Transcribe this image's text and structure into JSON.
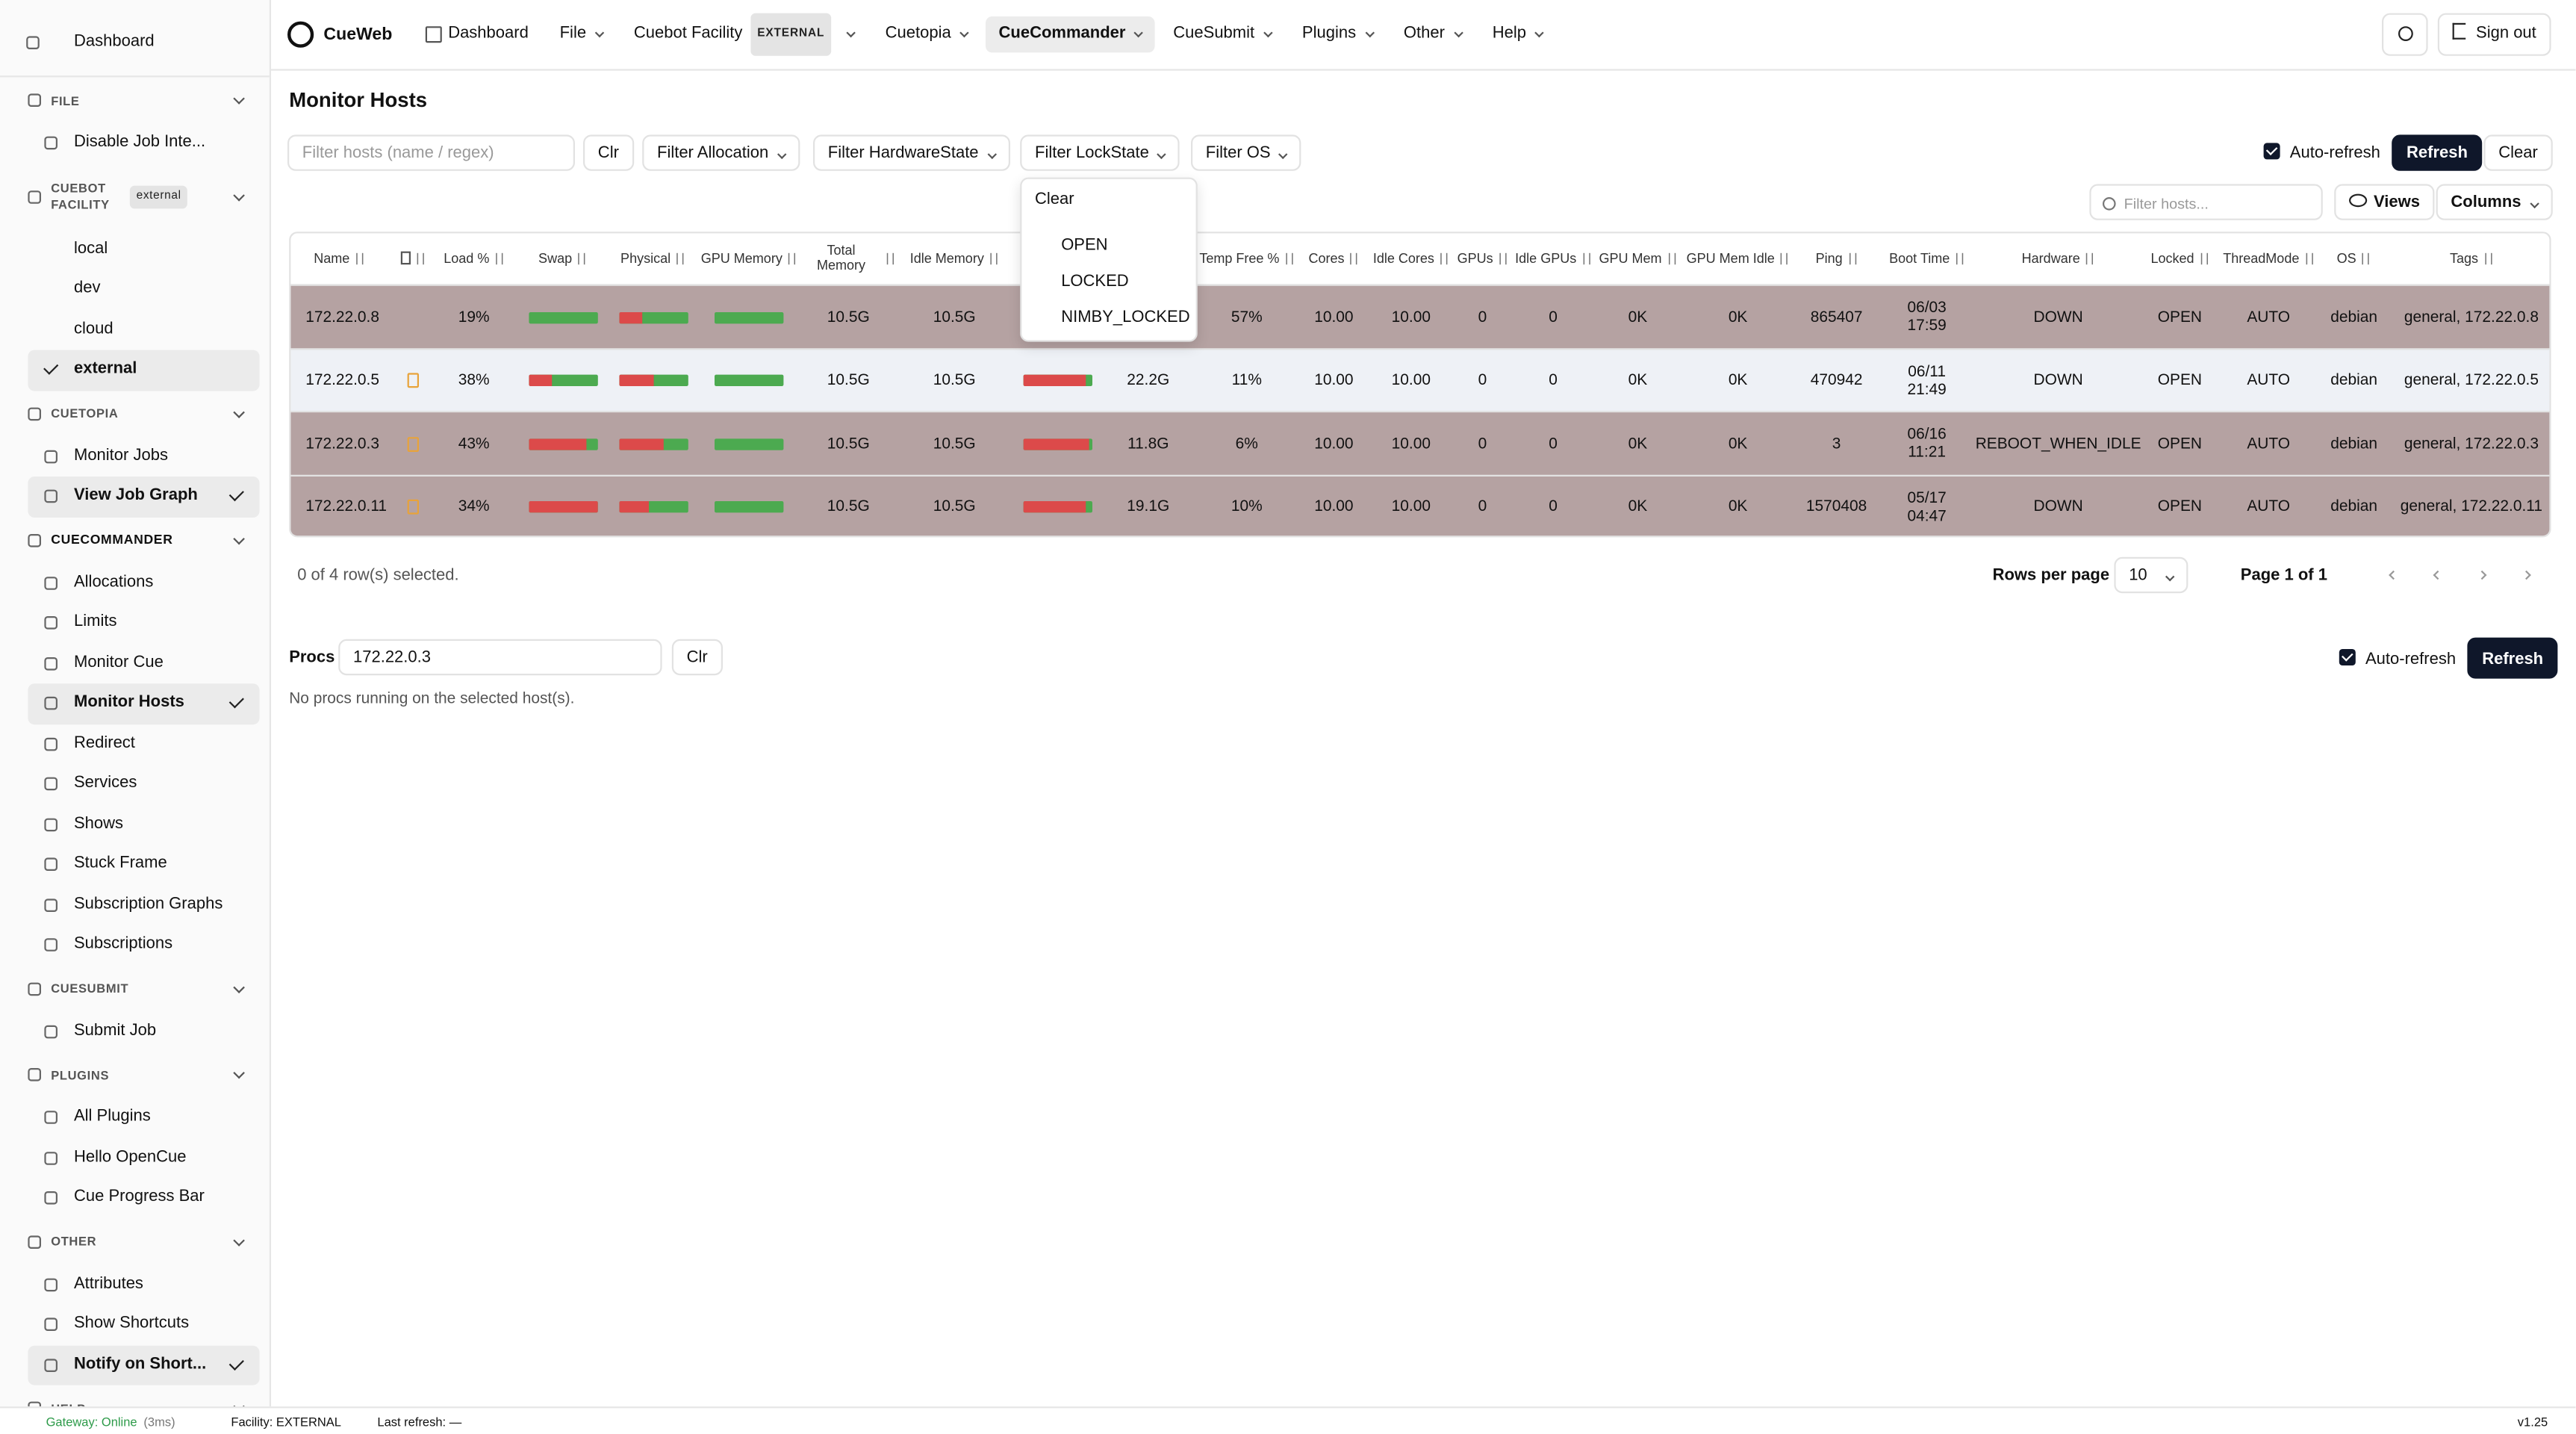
{
  "nav": {
    "brand": "CueWeb",
    "signout": "Sign out",
    "items": [
      {
        "label": "Dashboard",
        "menu": false
      },
      {
        "label": "File",
        "menu": true
      },
      {
        "label": "Cuebot Facility",
        "badge": "EXTERNAL",
        "menu": true
      },
      {
        "label": "Cuetopia",
        "menu": true
      },
      {
        "label": "CueCommander",
        "menu": true,
        "active": true
      },
      {
        "label": "CueSubmit",
        "menu": true
      },
      {
        "label": "Plugins",
        "menu": true
      },
      {
        "label": "Other",
        "menu": true
      },
      {
        "label": "Help",
        "menu": true
      }
    ]
  },
  "sidebar": {
    "dashboard": "Dashboard",
    "sections": [
      {
        "title": "FILE",
        "items": [
          {
            "label": "Disable Job Inte..."
          }
        ]
      },
      {
        "title": "CUEBOT FACILITY",
        "badge": "external",
        "plain": true,
        "items": [
          {
            "label": "local"
          },
          {
            "label": "dev"
          },
          {
            "label": "cloud"
          },
          {
            "label": "external",
            "selected": true
          }
        ]
      },
      {
        "title": "CUETOPIA",
        "items": [
          {
            "label": "Monitor Jobs"
          },
          {
            "label": "View Job Graph",
            "selected": true
          }
        ]
      },
      {
        "title": "CUECOMMANDER",
        "strong": true,
        "items": [
          {
            "label": "Allocations"
          },
          {
            "label": "Limits"
          },
          {
            "label": "Monitor Cue"
          },
          {
            "label": "Monitor Hosts",
            "selected": true
          },
          {
            "label": "Redirect"
          },
          {
            "label": "Services"
          },
          {
            "label": "Shows"
          },
          {
            "label": "Stuck Frame"
          },
          {
            "label": "Subscription Graphs"
          },
          {
            "label": "Subscriptions"
          }
        ]
      },
      {
        "title": "CUESUBMIT",
        "items": [
          {
            "label": "Submit Job"
          }
        ]
      },
      {
        "title": "PLUGINS",
        "items": [
          {
            "label": "All Plugins"
          },
          {
            "label": "Hello OpenCue"
          },
          {
            "label": "Cue Progress Bar"
          }
        ]
      },
      {
        "title": "OTHER",
        "items": [
          {
            "label": "Attributes"
          },
          {
            "label": "Show Shortcuts"
          },
          {
            "label": "Notify on Short...",
            "selected": true
          }
        ]
      },
      {
        "title": "HELP",
        "items": []
      }
    ]
  },
  "main": {
    "title": "Monitor Hosts",
    "filter_placeholder": "Filter hosts (name / regex)",
    "clr": "Clr",
    "filters": [
      "Filter Allocation",
      "Filter HardwareState",
      "Filter LockState",
      "Filter OS"
    ],
    "auto_refresh": "Auto-refresh",
    "refresh": "Refresh",
    "clear": "Clear",
    "dropdown": {
      "clear": "Clear",
      "options": [
        "OPEN",
        "LOCKED",
        "NIMBY_LOCKED"
      ]
    },
    "search_placeholder": "Filter hosts...",
    "views": "Views",
    "columns": "Columns"
  },
  "table": {
    "headers": [
      "Name",
      null,
      "Load %",
      "Swap",
      "Physical",
      "GPU Memory",
      "Total Memory",
      "Idle Memory",
      null,
      null,
      "Temp Free %",
      "Cores",
      "Idle Cores",
      "GPUs",
      "Idle GPUs",
      "GPU Mem",
      "GPU Mem Idle",
      "Ping",
      "Boot Time",
      "Hardware",
      "Locked",
      "ThreadMode",
      "OS",
      "Tags"
    ],
    "kinds": [
      "text",
      "note",
      "text",
      "bar",
      "bar",
      "bar",
      "text",
      "text",
      "bar",
      "text",
      "text",
      "text",
      "text",
      "text",
      "text",
      "text",
      "text",
      "text",
      "text",
      "text",
      "text",
      "text",
      "text",
      "text"
    ],
    "rows": [
      {
        "color": "#b5a2a2",
        "cells": [
          "172.22.0.8",
          false,
          "19%",
          0,
          35,
          0,
          "10.5G",
          "10.5G",
          null,
          null,
          "57%",
          "10.00",
          "10.00",
          "0",
          "0",
          "0K",
          "0K",
          "865407",
          "06/03\n17:59",
          "DOWN",
          "OPEN",
          "AUTO",
          "debian",
          "general, 172.22.0.8"
        ]
      },
      {
        "color": "#eef1f6",
        "cells": [
          "172.22.0.5",
          true,
          "38%",
          35,
          50,
          0,
          "10.5G",
          "10.5G",
          90,
          "22.2G",
          "11%",
          "10.00",
          "10.00",
          "0",
          "0",
          "0K",
          "0K",
          "470942",
          "06/11\n21:49",
          "DOWN",
          "OPEN",
          "AUTO",
          "debian",
          "general, 172.22.0.5"
        ]
      },
      {
        "color": "#b5a2a2",
        "cells": [
          "172.22.0.3",
          true,
          "43%",
          85,
          65,
          0,
          "10.5G",
          "10.5G",
          95,
          "11.8G",
          "6%",
          "10.00",
          "10.00",
          "0",
          "0",
          "0K",
          "0K",
          "3",
          "06/16\n11:21",
          "REBOOT_WHEN_IDLE",
          "OPEN",
          "AUTO",
          "debian",
          "general, 172.22.0.3"
        ]
      },
      {
        "color": "#b5a2a2",
        "cells": [
          "172.22.0.11",
          true,
          "34%",
          100,
          45,
          0,
          "10.5G",
          "10.5G",
          90,
          "19.1G",
          "10%",
          "10.00",
          "10.00",
          "0",
          "0",
          "0K",
          "0K",
          "1570408",
          "05/17\n04:47",
          "DOWN",
          "OPEN",
          "AUTO",
          "debian",
          "general, 172.22.0.11"
        ]
      }
    ],
    "selected_text": "0 of 4 row(s) selected.",
    "rows_per_page_label": "Rows per page",
    "rows_per_page": "10",
    "page": "Page 1 of 1"
  },
  "procs": {
    "label": "Procs",
    "host": "172.22.0.3",
    "clr": "Clr",
    "auto_refresh": "Auto-refresh",
    "refresh": "Refresh",
    "empty": "No procs running on the selected host(s)."
  },
  "status": {
    "gateway": "Gateway: Online",
    "latency": "(3ms)",
    "facility": "Facility: EXTERNAL",
    "last_refresh": "Last refresh: —",
    "version": "v1.25"
  }
}
